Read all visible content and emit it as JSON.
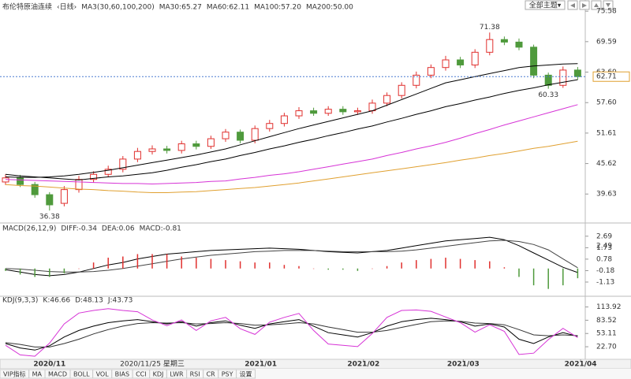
{
  "top_bar": {
    "theme_button": "全部主题▾"
  },
  "toolbar": {
    "tabs": [
      "VIP指标",
      "MA",
      "MACD",
      "BOLL",
      "VOL",
      "BIAS",
      "CCI",
      "KDJ",
      "LWR",
      "RSI",
      "CR",
      "PSY",
      "设置"
    ]
  },
  "chart_data": [
    {
      "type": "candlestick",
      "title": "布伦特原油连续",
      "subtitle": "‹日线›",
      "indicator": "MA3(30,60,100,200)",
      "up_color": "#e0302e",
      "down_color": "#4f9a3c",
      "open": [
        42.0,
        42.8,
        41.5,
        39.5,
        37.8,
        40.5,
        42.5,
        43.5,
        44.5,
        46.5,
        48.0,
        48.5,
        48.2,
        49.5,
        49.0,
        50.5,
        51.8,
        50.2,
        52.5,
        53.5,
        55.0,
        56.0,
        55.5,
        56.3,
        55.8,
        56.0,
        57.5,
        59.0,
        61.0,
        63.0,
        64.5,
        66.0,
        65.0,
        67.5,
        70.0,
        69.5,
        68.5,
        63.0,
        61.0,
        64.0
      ],
      "high": [
        43.5,
        43.4,
        42.0,
        40.0,
        41.2,
        43.2,
        44.1,
        45.2,
        47.1,
        48.7,
        49.2,
        49.1,
        50.1,
        50.1,
        51.1,
        52.4,
        52.3,
        53.1,
        54.2,
        55.6,
        56.7,
        56.6,
        56.9,
        56.9,
        56.6,
        58.2,
        59.6,
        61.6,
        63.7,
        65.1,
        66.8,
        66.6,
        68.1,
        71.38,
        70.6,
        70.2,
        69.0,
        63.5,
        64.7,
        64.6
      ],
      "low": [
        41.4,
        41.0,
        38.9,
        36.38,
        37.2,
        39.9,
        41.9,
        43.0,
        43.9,
        45.9,
        47.4,
        47.6,
        47.6,
        48.4,
        48.5,
        49.9,
        49.6,
        49.6,
        51.9,
        52.9,
        54.4,
        55.0,
        55.0,
        55.2,
        55.2,
        55.4,
        56.9,
        58.4,
        60.4,
        62.4,
        63.9,
        64.4,
        64.4,
        66.9,
        68.9,
        67.9,
        62.4,
        60.33,
        60.5,
        62.1
      ],
      "close": [
        42.8,
        41.5,
        39.5,
        37.5,
        40.5,
        42.5,
        43.5,
        44.5,
        46.5,
        48.0,
        48.5,
        48.2,
        49.5,
        49.0,
        50.5,
        51.8,
        50.2,
        52.5,
        53.5,
        55.0,
        56.0,
        55.5,
        56.3,
        55.8,
        56.0,
        57.5,
        59.0,
        61.0,
        63.0,
        64.5,
        66.0,
        65.0,
        67.5,
        70.0,
        69.5,
        68.5,
        63.0,
        61.0,
        64.0,
        62.71
      ],
      "series": [
        {
          "name": "MA30:65.27",
          "color": "#000000",
          "values": [
            43,
            42.9,
            42.9,
            43,
            43.2,
            43.5,
            43.9,
            44.3,
            44.8,
            45.3,
            45.8,
            46.3,
            46.8,
            47.3,
            47.9,
            48.5,
            49.3,
            50.1,
            50.9,
            51.7,
            52.5,
            53.2,
            53.9,
            54.6,
            55.3,
            56,
            57.1,
            58.2,
            59.3,
            60.4,
            61.5,
            62.1,
            62.7,
            63.3,
            63.9,
            64.5,
            64.8,
            65,
            65.2,
            65.27
          ]
        },
        {
          "name": "MA60:62.11",
          "color": "#000000",
          "values": [
            43.5,
            43.2,
            43,
            42.8,
            42.6,
            42.4,
            42.7,
            43,
            43.2,
            43.5,
            43.8,
            44.3,
            44.9,
            45.4,
            46,
            46.5,
            47.2,
            47.8,
            48.5,
            49.1,
            49.8,
            50.4,
            51.1,
            51.7,
            52.4,
            53,
            53.8,
            54.5,
            55.3,
            56,
            56.8,
            57.4,
            58.1,
            58.7,
            59.4,
            60,
            60.5,
            61.1,
            61.6,
            62.11
          ]
        },
        {
          "name": "MA100:57.20",
          "color": "#d633d6",
          "values": [
            42.5,
            42.4,
            42.3,
            42.2,
            42.1,
            42,
            41.9,
            41.8,
            41.7,
            41.7,
            41.6,
            41.7,
            41.8,
            41.9,
            42.1,
            42.2,
            42.6,
            42.9,
            43.3,
            43.6,
            44,
            44.5,
            45,
            45.5,
            46,
            46.5,
            47.2,
            47.8,
            48.5,
            49.1,
            49.8,
            50.6,
            51.5,
            52.3,
            53.2,
            54,
            54.8,
            55.6,
            56.4,
            57.2
          ]
        },
        {
          "name": "MA200:50.00",
          "color": "#e0a030",
          "values": [
            41.5,
            41.3,
            41.2,
            41,
            40.8,
            40.6,
            40.5,
            40.3,
            40.2,
            40,
            39.9,
            39.9,
            40,
            40.1,
            40.3,
            40.5,
            40.7,
            40.9,
            41.2,
            41.5,
            41.8,
            42.2,
            42.6,
            43,
            43.4,
            43.8,
            44.2,
            44.6,
            45,
            45.4,
            45.8,
            46.3,
            46.7,
            47.2,
            47.6,
            48.1,
            48.6,
            49,
            49.5,
            50
          ]
        }
      ],
      "ylim": [
        34.4,
        77.0
      ],
      "yticks": [
        75.58,
        69.59,
        {
          "value": 63.6,
          "label": "63.60"
        },
        {
          "value": 57.6,
          "label": "57.60"
        },
        51.61,
        45.62,
        39.63
      ],
      "xticks": [
        {
          "value": 3,
          "label": "2020/11"
        },
        {
          "value": 17.4,
          "label": "2021/01"
        },
        {
          "value": 24.4,
          "label": "2021/02"
        },
        {
          "value": 31.2,
          "label": "2021/03"
        },
        {
          "value": 39.2,
          "label": "2021/04"
        }
      ],
      "cursor": {
        "value": 10,
        "label": "2020/11/25 星期三"
      }
    },
    {
      "type": "macd",
      "title": "MACD(26,12,9)",
      "up_color": "#e0302e",
      "down_color": "#4f9a3c",
      "series": [
        {
          "name": "DIFF:-0.34",
          "color": "#000000",
          "values": [
            -0.1,
            -0.3,
            -0.5,
            -0.6,
            -0.5,
            -0.3,
            0,
            0.3,
            0.5,
            0.8,
            1.0,
            1.2,
            1.3,
            1.4,
            1.5,
            1.55,
            1.6,
            1.65,
            1.7,
            1.65,
            1.6,
            1.5,
            1.4,
            1.35,
            1.3,
            1.4,
            1.5,
            1.7,
            1.9,
            2.1,
            2.3,
            2.4,
            2.5,
            2.6,
            2.4,
            1.9,
            1.3,
            0.7,
            0.1,
            -0.34
          ]
        },
        {
          "name": "DEA:0.06",
          "color": "#444444",
          "values": [
            0,
            -0.05,
            -0.15,
            -0.25,
            -0.3,
            -0.3,
            -0.25,
            -0.15,
            0,
            0.2,
            0.4,
            0.6,
            0.8,
            0.95,
            1.1,
            1.2,
            1.3,
            1.4,
            1.45,
            1.5,
            1.5,
            1.5,
            1.45,
            1.4,
            1.4,
            1.4,
            1.4,
            1.45,
            1.55,
            1.7,
            1.85,
            2.0,
            2.15,
            2.3,
            2.35,
            2.25,
            2.0,
            1.55,
            0.8,
            0.06
          ]
        },
        {
          "name": "MACD:-0.81",
          "color": "#d633d6",
          "bars": true,
          "values": [
            -0.2,
            -0.5,
            -0.7,
            -0.7,
            -0.4,
            0,
            0.5,
            0.9,
            1.0,
            1.2,
            1.2,
            1.2,
            1.0,
            0.9,
            0.8,
            0.7,
            0.6,
            0.5,
            0.5,
            0.3,
            0.2,
            0,
            -0.1,
            -0.1,
            -0.2,
            0,
            0.2,
            0.5,
            0.7,
            0.8,
            0.9,
            0.8,
            0.7,
            0.6,
            0.1,
            -0.7,
            -1.4,
            -1.7,
            -1.4,
            -0.81
          ]
        }
      ],
      "ylim": [
        -2.05,
        3.2
      ],
      "yticks": [
        2.69,
        1.73,
        0.78,
        -0.18,
        -1.13
      ],
      "marker": 2.49
    },
    {
      "type": "line",
      "title": "KDJ(9,3,3)",
      "series": [
        {
          "name": "K:46.66",
          "color": "#000000",
          "values": [
            30,
            20,
            15,
            25,
            45,
            60,
            70,
            78,
            82,
            85,
            80,
            75,
            80,
            70,
            78,
            82,
            72,
            65,
            75,
            80,
            85,
            70,
            55,
            50,
            45,
            55,
            70,
            80,
            85,
            88,
            85,
            80,
            70,
            75,
            68,
            40,
            30,
            45,
            55,
            46.66
          ]
        },
        {
          "name": "D:48.13",
          "color": "#333333",
          "values": [
            32,
            28,
            22,
            22,
            30,
            40,
            52,
            62,
            70,
            76,
            78,
            77,
            78,
            75,
            76,
            78,
            76,
            72,
            73,
            75,
            78,
            75,
            68,
            62,
            56,
            56,
            60,
            67,
            74,
            80,
            82,
            81,
            77,
            76,
            73,
            62,
            50,
            48,
            50,
            48.13
          ]
        },
        {
          "name": "J:43.73",
          "color": "#d633d6",
          "values": [
            26,
            4,
            1,
            31,
            75,
            100,
            106,
            110,
            106,
            103,
            84,
            71,
            84,
            60,
            82,
            90,
            64,
            51,
            79,
            90,
            99,
            60,
            29,
            26,
            23,
            53,
            90,
            106,
            107,
            104,
            91,
            78,
            56,
            73,
            58,
            5,
            8,
            39,
            65,
            43.73
          ]
        }
      ],
      "ylim": [
        -4.3,
        124
      ],
      "yticks": [
        113.92,
        83.52,
        53.11,
        {
          "value": 22.7,
          "label": "22.70"
        }
      ]
    }
  ]
}
